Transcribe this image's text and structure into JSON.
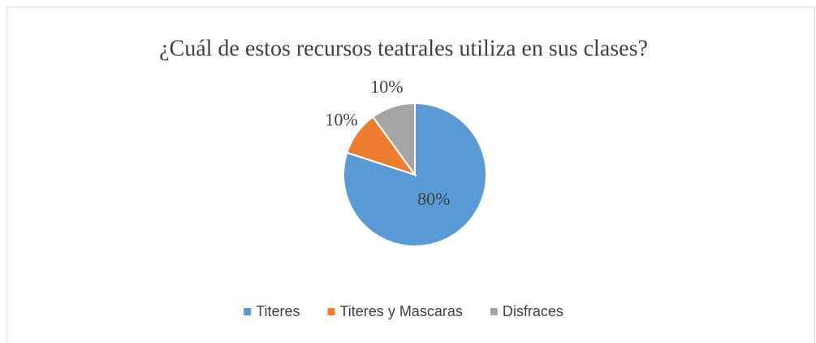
{
  "chart_data": {
    "type": "pie",
    "title": "¿Cuál de estos recursos teatrales utiliza en sus clases?",
    "categories": [
      "Titeres",
      "Titeres y Mascaras",
      "Disfraces"
    ],
    "values": [
      80,
      10,
      10
    ],
    "value_labels": [
      "80%",
      "10%",
      "10%"
    ],
    "colors": [
      "#5b9bd5",
      "#ed7d31",
      "#a5a5a5"
    ],
    "legend": "bottom"
  }
}
